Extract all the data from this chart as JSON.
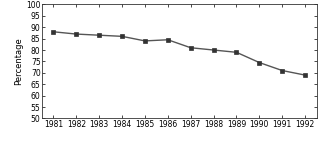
{
  "years": [
    1981,
    1982,
    1983,
    1984,
    1985,
    1986,
    1987,
    1988,
    1989,
    1990,
    1991,
    1992
  ],
  "values": [
    88.0,
    87.0,
    86.5,
    86.0,
    84.0,
    84.5,
    81.0,
    80.0,
    79.0,
    74.5,
    71.0,
    69.0
  ],
  "ylabel": "Percentage",
  "ylim": [
    50,
    100
  ],
  "yticks": [
    50,
    55,
    60,
    65,
    70,
    75,
    80,
    85,
    90,
    95,
    100
  ],
  "line_color": "#555555",
  "marker": "s",
  "marker_color": "#333333",
  "marker_size": 3,
  "line_width": 1.0,
  "background_color": "#ffffff",
  "ylabel_fontsize": 6,
  "tick_fontsize": 5.5
}
